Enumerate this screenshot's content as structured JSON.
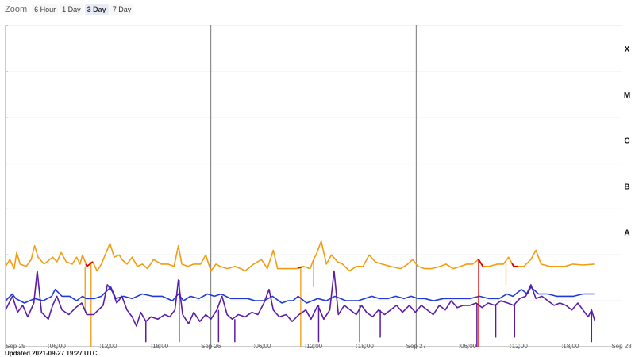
{
  "zoom": {
    "label": "Zoom",
    "buttons": [
      "6 Hour",
      "1 Day",
      "3 Day",
      "7 Day"
    ],
    "selected": "3 Day"
  },
  "updated": "Updated 2021-09-27 19:27 UTC",
  "chart_data": {
    "type": "line",
    "x_ticks": [
      "Sep 25",
      ":06:00",
      ":12:00",
      ":18:00",
      "Sep 26",
      ":06:00",
      ":12:00",
      ":18:00",
      "Sep 27",
      ":06:00",
      ":12:00",
      ":18:00",
      "Sep 28"
    ],
    "y_class_labels": [
      "X",
      "M",
      "C",
      "B",
      "A"
    ],
    "y_scale": "log",
    "y_unit_range": [
      -9,
      -2
    ],
    "x_range_hours": [
      0,
      72
    ],
    "grid": true,
    "day_markers_hours": [
      24,
      48
    ],
    "colors": {
      "long": "#f39c12",
      "short": "#1f3ad8",
      "short_alt": "#5b1ca8",
      "flag": "#e00000"
    },
    "series": [
      {
        "color": "#f39c12",
        "points": [
          [
            0,
            -7.25
          ],
          [
            0.5,
            -7.1
          ],
          [
            1,
            -7.3
          ],
          [
            1.3,
            -6.95
          ],
          [
            1.7,
            -7.2
          ],
          [
            2.4,
            -7.25
          ],
          [
            3,
            -7.1
          ],
          [
            3.4,
            -6.8
          ],
          [
            3.8,
            -7.05
          ],
          [
            4.5,
            -7.2
          ],
          [
            5.5,
            -7.05
          ],
          [
            6,
            -7.15
          ],
          [
            6.5,
            -6.95
          ],
          [
            7.1,
            -7.15
          ],
          [
            7.8,
            -7.2
          ],
          [
            8.3,
            -7.05
          ],
          [
            8.7,
            -7.2
          ],
          [
            9,
            -7.0
          ],
          [
            9.5,
            -7.25
          ],
          [
            10.2,
            -7.15
          ],
          [
            10.7,
            -7.35
          ],
          [
            11.2,
            -7.2
          ],
          [
            12.2,
            -6.75
          ],
          [
            12.7,
            -7.05
          ],
          [
            13.3,
            -7.0
          ],
          [
            13.6,
            -7.1
          ],
          [
            14.2,
            -7.2
          ],
          [
            14.8,
            -7.05
          ],
          [
            15.4,
            -7.25
          ],
          [
            16,
            -7.2
          ],
          [
            16.6,
            -7.3
          ],
          [
            17.3,
            -7.1
          ],
          [
            18.2,
            -7.2
          ],
          [
            19,
            -7.2
          ],
          [
            19.7,
            -7.25
          ],
          [
            20.2,
            -6.8
          ],
          [
            20.6,
            -7.2
          ],
          [
            21.3,
            -7.25
          ],
          [
            22,
            -7.2
          ],
          [
            22.8,
            -7.2
          ],
          [
            23.4,
            -7.0
          ],
          [
            24,
            -7.35
          ],
          [
            24.6,
            -7.2
          ],
          [
            25.1,
            -7.25
          ],
          [
            25.9,
            -7.3
          ],
          [
            26.8,
            -7.25
          ],
          [
            27.5,
            -7.3
          ],
          [
            28,
            -7.35
          ],
          [
            29,
            -7.2
          ],
          [
            29.9,
            -7.1
          ],
          [
            30.6,
            -7.3
          ],
          [
            31.3,
            -6.9
          ],
          [
            31.8,
            -7.3
          ],
          [
            32.6,
            -7.3
          ],
          [
            33.2,
            -7.3
          ],
          [
            34,
            -7.3
          ],
          [
            34.8,
            -7.25
          ],
          [
            35.6,
            -7.3
          ],
          [
            36,
            -7.1
          ],
          [
            36.3,
            -7.0
          ],
          [
            36.9,
            -6.7
          ],
          [
            37.5,
            -7.2
          ],
          [
            38.1,
            -7.0
          ],
          [
            38.8,
            -7.15
          ],
          [
            39.4,
            -7.2
          ],
          [
            40.2,
            -7.35
          ],
          [
            41,
            -7.25
          ],
          [
            41.8,
            -7.25
          ],
          [
            42.5,
            -7.0
          ],
          [
            43.2,
            -7.15
          ],
          [
            44,
            -7.2
          ],
          [
            45,
            -7.25
          ],
          [
            46.2,
            -7.3
          ],
          [
            47,
            -7.2
          ],
          [
            47.6,
            -7.1
          ],
          [
            48.2,
            -7.25
          ],
          [
            49,
            -7.3
          ],
          [
            49.8,
            -7.3
          ],
          [
            50.8,
            -7.25
          ],
          [
            51.5,
            -7.2
          ],
          [
            52.3,
            -7.3
          ],
          [
            53.2,
            -7.25
          ],
          [
            53.9,
            -7.2
          ],
          [
            54.6,
            -7.2
          ],
          [
            55.3,
            -7.1
          ],
          [
            55.8,
            -7.25
          ],
          [
            56.5,
            -7.25
          ],
          [
            57.5,
            -7.2
          ],
          [
            58.2,
            -7.2
          ],
          [
            58.8,
            -7.05
          ],
          [
            59.4,
            -7.25
          ],
          [
            60.6,
            -7.25
          ],
          [
            61.4,
            -7.1
          ],
          [
            62,
            -6.9
          ],
          [
            62.6,
            -7.2
          ],
          [
            63.6,
            -7.25
          ],
          [
            64.5,
            -7.25
          ],
          [
            65.4,
            -7.25
          ],
          [
            66.3,
            -7.2
          ],
          [
            67.5,
            -7.22
          ],
          [
            68.8,
            -7.2
          ]
        ]
      },
      {
        "color": "#1f3ad8",
        "points": [
          [
            0,
            -8.0
          ],
          [
            0.8,
            -7.85
          ],
          [
            1.2,
            -7.95
          ],
          [
            2.2,
            -8.05
          ],
          [
            3.4,
            -7.95
          ],
          [
            4.4,
            -8.0
          ],
          [
            5.4,
            -7.9
          ],
          [
            5.8,
            -7.75
          ],
          [
            6.6,
            -7.9
          ],
          [
            7.5,
            -7.9
          ],
          [
            8.3,
            -8.0
          ],
          [
            9,
            -7.9
          ],
          [
            9.4,
            -7.95
          ],
          [
            10.4,
            -7.95
          ],
          [
            11.2,
            -7.9
          ],
          [
            12.3,
            -7.7
          ],
          [
            12.9,
            -7.95
          ],
          [
            13.8,
            -7.9
          ],
          [
            14.8,
            -7.95
          ],
          [
            16,
            -7.85
          ],
          [
            17.2,
            -7.9
          ],
          [
            18.3,
            -7.9
          ],
          [
            19.5,
            -8.0
          ],
          [
            20.2,
            -7.85
          ],
          [
            20.8,
            -8.0
          ],
          [
            21.6,
            -7.9
          ],
          [
            22.6,
            -7.95
          ],
          [
            23.6,
            -7.85
          ],
          [
            24.4,
            -7.9
          ],
          [
            25.2,
            -7.85
          ],
          [
            26.3,
            -7.95
          ],
          [
            27.3,
            -7.95
          ],
          [
            28.3,
            -7.95
          ],
          [
            29.2,
            -8.0
          ],
          [
            30.2,
            -8.0
          ],
          [
            31.2,
            -7.9
          ],
          [
            32.3,
            -8.05
          ],
          [
            33,
            -8.0
          ],
          [
            33.6,
            -8.0
          ],
          [
            34.2,
            -7.9
          ],
          [
            35.2,
            -8.05
          ],
          [
            36.5,
            -7.95
          ],
          [
            37.5,
            -8.0
          ],
          [
            38.5,
            -7.9
          ],
          [
            39.8,
            -8.0
          ],
          [
            41.2,
            -8.0
          ],
          [
            42,
            -7.95
          ],
          [
            42.8,
            -7.9
          ],
          [
            43.7,
            -7.95
          ],
          [
            44.7,
            -7.95
          ],
          [
            45.6,
            -7.9
          ],
          [
            46.6,
            -7.95
          ],
          [
            47.4,
            -7.9
          ],
          [
            48.2,
            -7.95
          ],
          [
            49,
            -7.95
          ],
          [
            50,
            -8.0
          ],
          [
            51.2,
            -7.95
          ],
          [
            52.3,
            -7.95
          ],
          [
            53.3,
            -7.95
          ],
          [
            54.3,
            -7.95
          ],
          [
            55.4,
            -7.9
          ],
          [
            56.5,
            -7.95
          ],
          [
            57.7,
            -7.95
          ],
          [
            58.6,
            -7.85
          ],
          [
            59.3,
            -7.9
          ],
          [
            60.3,
            -7.75
          ],
          [
            61,
            -7.85
          ],
          [
            61.4,
            -7.7
          ],
          [
            62.3,
            -7.85
          ],
          [
            63.4,
            -7.85
          ],
          [
            64.4,
            -7.9
          ],
          [
            65.4,
            -7.9
          ],
          [
            66.4,
            -7.9
          ],
          [
            67.5,
            -7.85
          ],
          [
            68.8,
            -7.85
          ]
        ]
      },
      {
        "color": "#5b1ca8",
        "points": [
          [
            0,
            -8.2
          ],
          [
            0.8,
            -7.9
          ],
          [
            1.4,
            -8.25
          ],
          [
            2,
            -8.1
          ],
          [
            2.6,
            -8.35
          ],
          [
            3.3,
            -8.05
          ],
          [
            3.7,
            -7.35
          ],
          [
            4.2,
            -8.25
          ],
          [
            5,
            -8.4
          ],
          [
            5.5,
            -8.1
          ],
          [
            6,
            -7.9
          ],
          [
            6.6,
            -8.2
          ],
          [
            7.4,
            -8.3
          ],
          [
            8.2,
            -8.15
          ],
          [
            8.9,
            -8.05
          ],
          [
            9.5,
            -8.3
          ],
          [
            10.3,
            -8.3
          ],
          [
            11.4,
            -8.1
          ],
          [
            11.9,
            -7.65
          ],
          [
            12.5,
            -7.8
          ],
          [
            13,
            -8.05
          ],
          [
            13.6,
            -7.9
          ],
          [
            14.2,
            -8.2
          ],
          [
            14.8,
            -8.35
          ],
          [
            15.3,
            -8.55
          ],
          [
            15.8,
            -8.25
          ],
          [
            16.4,
            -8.45
          ],
          [
            17,
            -8.35
          ],
          [
            17.8,
            -8.4
          ],
          [
            18.6,
            -8.3
          ],
          [
            19.2,
            -8.35
          ],
          [
            19.8,
            -8.2
          ],
          [
            20.2,
            -7.55
          ],
          [
            20.7,
            -8.3
          ],
          [
            21.4,
            -8.5
          ],
          [
            22,
            -8.25
          ],
          [
            22.7,
            -8.45
          ],
          [
            23.4,
            -8.3
          ],
          [
            24,
            -8.4
          ],
          [
            24.7,
            -8.2
          ],
          [
            25.3,
            -7.9
          ],
          [
            25.9,
            -8.3
          ],
          [
            26.5,
            -8.4
          ],
          [
            27.2,
            -8.3
          ],
          [
            28,
            -8.35
          ],
          [
            28.8,
            -8.25
          ],
          [
            29.5,
            -8.3
          ],
          [
            30.2,
            -8.05
          ],
          [
            30.8,
            -7.75
          ],
          [
            31.3,
            -8.2
          ],
          [
            32,
            -8.35
          ],
          [
            32.8,
            -8.3
          ],
          [
            33.5,
            -8.45
          ],
          [
            34.3,
            -8.3
          ],
          [
            35.1,
            -8.2
          ],
          [
            35.7,
            -8.4
          ],
          [
            36.5,
            -8.1
          ],
          [
            37.2,
            -8.4
          ],
          [
            37.9,
            -8.2
          ],
          [
            38.4,
            -7.35
          ],
          [
            38.9,
            -8.3
          ],
          [
            39.6,
            -8.1
          ],
          [
            40.3,
            -8.2
          ],
          [
            41,
            -8.3
          ],
          [
            41.6,
            -8.1
          ],
          [
            42.2,
            -8.25
          ],
          [
            42.9,
            -8.35
          ],
          [
            43.6,
            -8.2
          ],
          [
            44.3,
            -8.3
          ],
          [
            45,
            -8.2
          ],
          [
            45.7,
            -8.1
          ],
          [
            46.4,
            -8.25
          ],
          [
            47.2,
            -8.1
          ],
          [
            47.9,
            -8.25
          ],
          [
            48.6,
            -8.1
          ],
          [
            49.3,
            -8.2
          ],
          [
            50,
            -8.3
          ],
          [
            50.7,
            -8.1
          ],
          [
            51.4,
            -8.2
          ],
          [
            52.1,
            -8.0
          ],
          [
            52.8,
            -8.15
          ],
          [
            53.5,
            -8.1
          ],
          [
            54.3,
            -8.1
          ],
          [
            55,
            -8.05
          ],
          [
            55.7,
            -8.15
          ],
          [
            56.4,
            -8.05
          ],
          [
            57.2,
            -8.1
          ],
          [
            57.9,
            -8.0
          ],
          [
            58.7,
            -8.05
          ],
          [
            59.4,
            -8.1
          ],
          [
            60.1,
            -7.95
          ],
          [
            60.8,
            -7.9
          ],
          [
            61.4,
            -7.65
          ],
          [
            62,
            -7.95
          ],
          [
            62.7,
            -7.9
          ],
          [
            63.4,
            -8.0
          ],
          [
            64.1,
            -8.1
          ],
          [
            64.8,
            -8.05
          ],
          [
            65.5,
            -8.1
          ],
          [
            66.2,
            -8.2
          ],
          [
            66.9,
            -8.05
          ],
          [
            67.5,
            -8.2
          ],
          [
            68.1,
            -8.35
          ],
          [
            68.5,
            -8.2
          ],
          [
            68.9,
            -8.45
          ]
        ]
      }
    ],
    "long_dropouts": [
      {
        "x": 9.3,
        "to": -8.2
      },
      {
        "x": 10.0,
        "to": -9
      },
      {
        "x": 34.5,
        "to": -9
      },
      {
        "x": 36.0,
        "to": -7.7
      },
      {
        "x": 58.5,
        "to": -7.65
      }
    ],
    "short_dropouts": [
      {
        "x": 16.4,
        "to": -8.9
      },
      {
        "x": 20.3,
        "to": -8.9
      },
      {
        "x": 24.9,
        "to": -8.9
      },
      {
        "x": 26.8,
        "to": -8.9
      },
      {
        "x": 36.6,
        "to": -8.9
      },
      {
        "x": 41.4,
        "to": -8.9
      },
      {
        "x": 43.8,
        "to": -8.8
      },
      {
        "x": 55.1,
        "to": -9
      },
      {
        "x": 57.3,
        "to": -8.8
      },
      {
        "x": 59.5,
        "to": -8.8
      },
      {
        "x": 68.5,
        "to": -8.9
      }
    ],
    "flag_segments": [
      {
        "from": 9.4,
        "to": 10.2
      },
      {
        "from": 34.2,
        "to": 34.6
      },
      {
        "from": 55.2,
        "to": 55.8
      },
      {
        "from": 59.2,
        "to": 59.9
      }
    ],
    "flag_dropouts": [
      {
        "x": 55.3,
        "to": -9
      }
    ]
  }
}
